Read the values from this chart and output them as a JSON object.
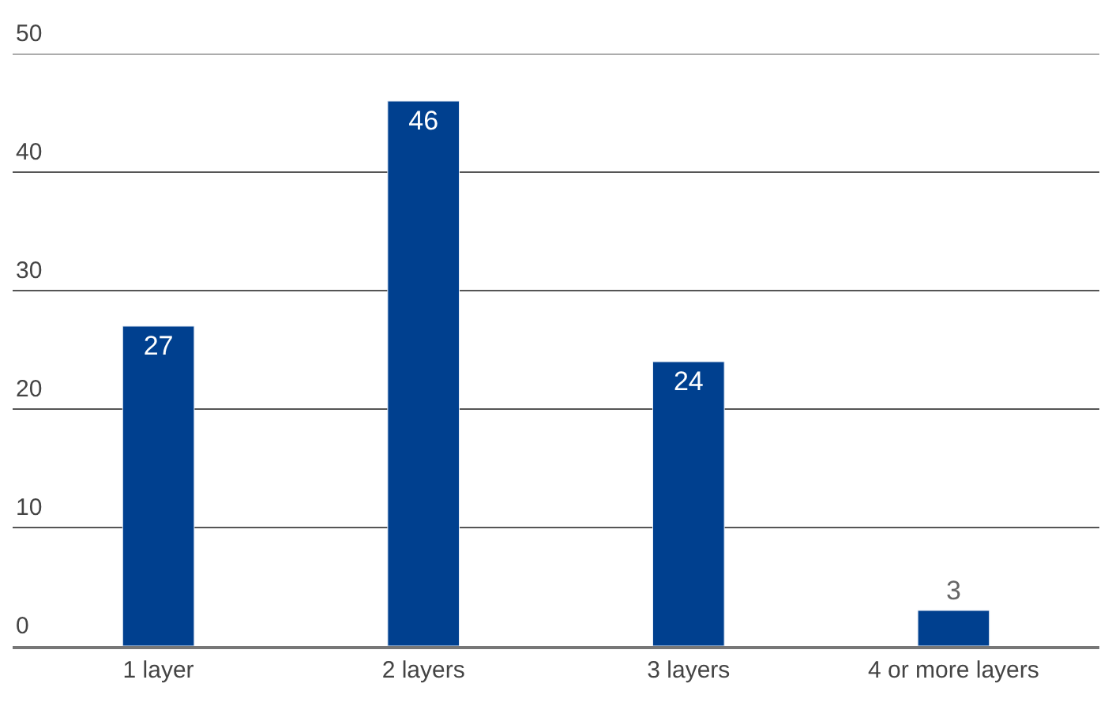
{
  "chart_data": {
    "type": "bar",
    "categories": [
      "1 layer",
      "2 layers",
      "3 layers",
      "4 or more layers"
    ],
    "values": [
      27,
      46,
      24,
      3
    ],
    "color": "#00408f",
    "ylim": [
      0,
      50
    ],
    "yticks": [
      0,
      10,
      20,
      30,
      40,
      50
    ],
    "grid": "y",
    "data_labels": true
  }
}
